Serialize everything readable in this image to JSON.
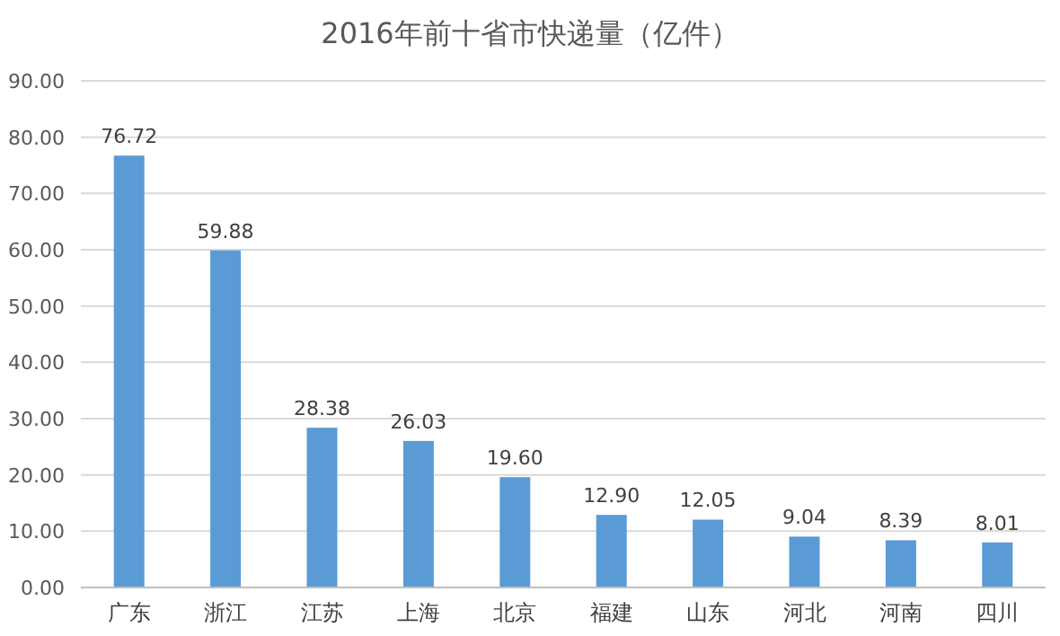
{
  "chart_data": {
    "type": "bar",
    "title": "2016年前十省市快递量（亿件）",
    "categories": [
      "广东",
      "浙江",
      "江苏",
      "上海",
      "北京",
      "福建",
      "山东",
      "河北",
      "河南",
      "四川"
    ],
    "values": [
      76.72,
      59.88,
      28.38,
      26.03,
      19.6,
      12.9,
      12.05,
      9.04,
      8.39,
      8.01
    ],
    "value_labels": [
      "76.72",
      "59.88",
      "28.38",
      "26.03",
      "19.60",
      "12.90",
      "12.05",
      "9.04",
      "8.39",
      "8.01"
    ],
    "color": "#5b9bd5",
    "ylim": [
      0,
      90
    ],
    "yticks": [
      {
        "value": 0,
        "label": "0.00"
      },
      {
        "value": 10,
        "label": "10.00"
      },
      {
        "value": 20,
        "label": "20.00"
      },
      {
        "value": 30,
        "label": "30.00"
      },
      {
        "value": 40,
        "label": "40.00"
      },
      {
        "value": 50,
        "label": "50.00"
      },
      {
        "value": 60,
        "label": "60.00"
      },
      {
        "value": 70,
        "label": "70.00"
      },
      {
        "value": 80,
        "label": "80.00"
      },
      {
        "value": 90,
        "label": "90.00"
      }
    ],
    "grid": "y"
  }
}
